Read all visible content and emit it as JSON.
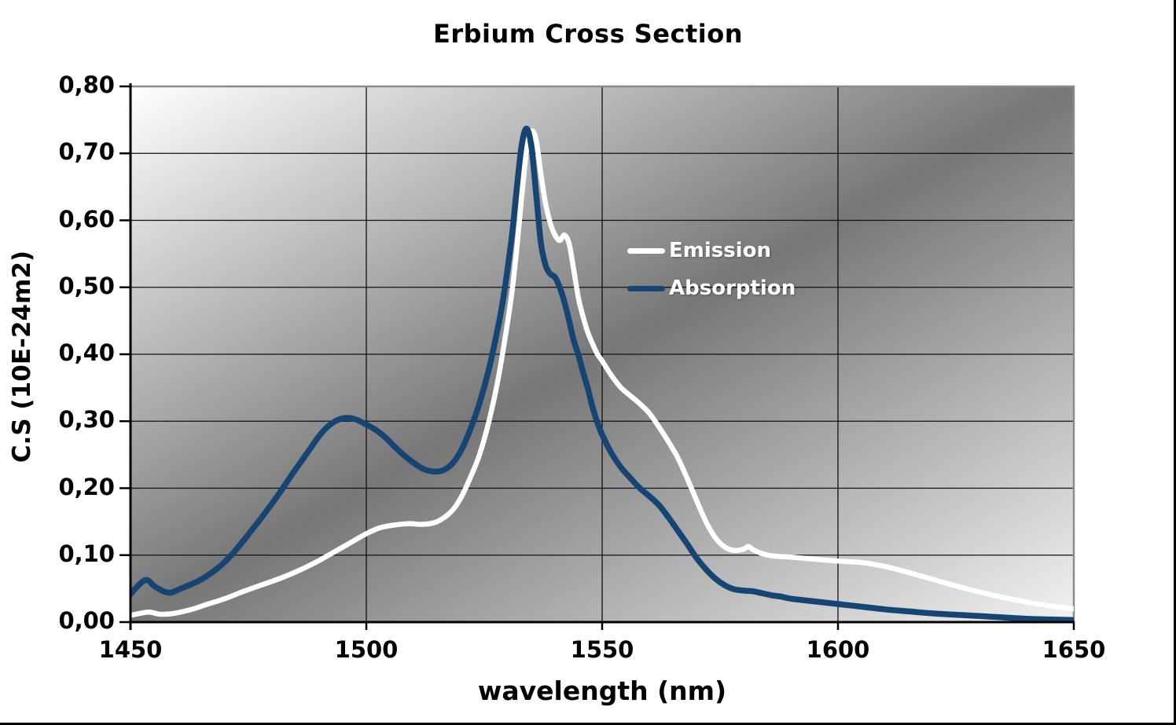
{
  "title": "Erbium Cross Section",
  "colors": {
    "emission_line": "#ffffff",
    "absorption_line": "#164573",
    "gridline": "#111111",
    "axis": "#000000",
    "plot_border": "#8c8c8c",
    "gradient_light": "#ffffff",
    "gradient_dark": "#777777",
    "gradient_end": "#f2f2f2",
    "text": "#000000",
    "legend_text": "#ffffff"
  },
  "legend": {
    "entries": [
      "Emission",
      "Absorption"
    ]
  },
  "chart_data": {
    "type": "line",
    "title": "Erbium Cross Section",
    "xlabel": "wavelength (nm)",
    "ylabel": "C.S (10E-24m2)",
    "xlim": [
      1450,
      1650
    ],
    "ylim": [
      0,
      0.8
    ],
    "grid": true,
    "legend_position": "center-right",
    "x_ticks": [
      {
        "v": 1450,
        "label": "1450"
      },
      {
        "v": 1500,
        "label": "1500"
      },
      {
        "v": 1550,
        "label": "1550"
      },
      {
        "v": 1600,
        "label": "1600"
      },
      {
        "v": 1650,
        "label": "1650"
      }
    ],
    "y_ticks": [
      {
        "v": 0.0,
        "label": "0,00"
      },
      {
        "v": 0.1,
        "label": "0,10"
      },
      {
        "v": 0.2,
        "label": "0,20"
      },
      {
        "v": 0.3,
        "label": "0,30"
      },
      {
        "v": 0.4,
        "label": "0,40"
      },
      {
        "v": 0.5,
        "label": "0,50"
      },
      {
        "v": 0.6,
        "label": "0,60"
      },
      {
        "v": 0.7,
        "label": "0,70"
      },
      {
        "v": 0.8,
        "label": "0,80"
      }
    ],
    "series": [
      {
        "name": "Emission",
        "color": "#ffffff",
        "stroke_width": 6.5,
        "points": [
          [
            1450,
            0.01
          ],
          [
            1452,
            0.013
          ],
          [
            1454,
            0.015
          ],
          [
            1456,
            0.012
          ],
          [
            1458,
            0.012
          ],
          [
            1460,
            0.014
          ],
          [
            1463,
            0.019
          ],
          [
            1466,
            0.026
          ],
          [
            1470,
            0.035
          ],
          [
            1474,
            0.046
          ],
          [
            1478,
            0.056
          ],
          [
            1482,
            0.066
          ],
          [
            1486,
            0.078
          ],
          [
            1490,
            0.092
          ],
          [
            1494,
            0.108
          ],
          [
            1497,
            0.12
          ],
          [
            1500,
            0.132
          ],
          [
            1503,
            0.141
          ],
          [
            1506,
            0.145
          ],
          [
            1509,
            0.147
          ],
          [
            1512,
            0.146
          ],
          [
            1515,
            0.15
          ],
          [
            1518,
            0.165
          ],
          [
            1520,
            0.185
          ],
          [
            1522,
            0.215
          ],
          [
            1524,
            0.25
          ],
          [
            1526,
            0.3
          ],
          [
            1528,
            0.365
          ],
          [
            1530,
            0.45
          ],
          [
            1531,
            0.5
          ],
          [
            1532,
            0.565
          ],
          [
            1533,
            0.64
          ],
          [
            1534,
            0.705
          ],
          [
            1535,
            0.733
          ],
          [
            1536,
            0.72
          ],
          [
            1537,
            0.67
          ],
          [
            1538,
            0.625
          ],
          [
            1539,
            0.596
          ],
          [
            1540,
            0.578
          ],
          [
            1541,
            0.57
          ],
          [
            1542,
            0.578
          ],
          [
            1543,
            0.565
          ],
          [
            1544,
            0.525
          ],
          [
            1545,
            0.483
          ],
          [
            1546,
            0.455
          ],
          [
            1547,
            0.432
          ],
          [
            1548,
            0.415
          ],
          [
            1549,
            0.4
          ],
          [
            1550,
            0.39
          ],
          [
            1552,
            0.368
          ],
          [
            1554,
            0.35
          ],
          [
            1556,
            0.338
          ],
          [
            1558,
            0.326
          ],
          [
            1560,
            0.312
          ],
          [
            1562,
            0.292
          ],
          [
            1564,
            0.27
          ],
          [
            1566,
            0.246
          ],
          [
            1568,
            0.215
          ],
          [
            1570,
            0.182
          ],
          [
            1572,
            0.15
          ],
          [
            1574,
            0.126
          ],
          [
            1576,
            0.112
          ],
          [
            1578,
            0.107
          ],
          [
            1580,
            0.109
          ],
          [
            1581,
            0.113
          ],
          [
            1582,
            0.108
          ],
          [
            1584,
            0.102
          ],
          [
            1586,
            0.099
          ],
          [
            1590,
            0.097
          ],
          [
            1595,
            0.094
          ],
          [
            1600,
            0.091
          ],
          [
            1605,
            0.089
          ],
          [
            1610,
            0.083
          ],
          [
            1615,
            0.074
          ],
          [
            1620,
            0.064
          ],
          [
            1625,
            0.054
          ],
          [
            1630,
            0.045
          ],
          [
            1635,
            0.037
          ],
          [
            1640,
            0.03
          ],
          [
            1645,
            0.024
          ],
          [
            1650,
            0.02
          ]
        ]
      },
      {
        "name": "Absorption",
        "color": "#164573",
        "stroke_width": 7.5,
        "points": [
          [
            1450,
            0.042
          ],
          [
            1452,
            0.057
          ],
          [
            1453.5,
            0.063
          ],
          [
            1455,
            0.054
          ],
          [
            1457,
            0.046
          ],
          [
            1458.5,
            0.044
          ],
          [
            1460,
            0.048
          ],
          [
            1462,
            0.054
          ],
          [
            1464,
            0.06
          ],
          [
            1466,
            0.068
          ],
          [
            1468,
            0.078
          ],
          [
            1470,
            0.09
          ],
          [
            1472,
            0.105
          ],
          [
            1474,
            0.122
          ],
          [
            1476,
            0.14
          ],
          [
            1478,
            0.158
          ],
          [
            1480,
            0.177
          ],
          [
            1482,
            0.197
          ],
          [
            1484,
            0.218
          ],
          [
            1486,
            0.238
          ],
          [
            1488,
            0.258
          ],
          [
            1490,
            0.278
          ],
          [
            1492,
            0.293
          ],
          [
            1494,
            0.302
          ],
          [
            1496,
            0.305
          ],
          [
            1498,
            0.302
          ],
          [
            1500,
            0.295
          ],
          [
            1502,
            0.287
          ],
          [
            1504,
            0.276
          ],
          [
            1506,
            0.262
          ],
          [
            1508,
            0.249
          ],
          [
            1510,
            0.238
          ],
          [
            1512,
            0.229
          ],
          [
            1514,
            0.225
          ],
          [
            1516,
            0.226
          ],
          [
            1518,
            0.235
          ],
          [
            1520,
            0.255
          ],
          [
            1522,
            0.287
          ],
          [
            1524,
            0.327
          ],
          [
            1526,
            0.378
          ],
          [
            1528,
            0.443
          ],
          [
            1529,
            0.482
          ],
          [
            1530,
            0.53
          ],
          [
            1531,
            0.585
          ],
          [
            1532,
            0.655
          ],
          [
            1533,
            0.715
          ],
          [
            1534,
            0.737
          ],
          [
            1535,
            0.71
          ],
          [
            1536,
            0.64
          ],
          [
            1537,
            0.567
          ],
          [
            1538,
            0.533
          ],
          [
            1539,
            0.52
          ],
          [
            1540,
            0.515
          ],
          [
            1541,
            0.5
          ],
          [
            1542,
            0.478
          ],
          [
            1543,
            0.45
          ],
          [
            1544,
            0.42
          ],
          [
            1545,
            0.398
          ],
          [
            1546,
            0.372
          ],
          [
            1547,
            0.348
          ],
          [
            1548,
            0.32
          ],
          [
            1549,
            0.298
          ],
          [
            1550,
            0.28
          ],
          [
            1552,
            0.252
          ],
          [
            1554,
            0.231
          ],
          [
            1556,
            0.215
          ],
          [
            1558,
            0.2
          ],
          [
            1560,
            0.188
          ],
          [
            1562,
            0.175
          ],
          [
            1564,
            0.157
          ],
          [
            1566,
            0.137
          ],
          [
            1568,
            0.117
          ],
          [
            1570,
            0.096
          ],
          [
            1572,
            0.079
          ],
          [
            1574,
            0.065
          ],
          [
            1576,
            0.055
          ],
          [
            1578,
            0.049
          ],
          [
            1580,
            0.047
          ],
          [
            1582,
            0.046
          ],
          [
            1584,
            0.043
          ],
          [
            1586,
            0.04
          ],
          [
            1588,
            0.038
          ],
          [
            1590,
            0.035
          ],
          [
            1595,
            0.031
          ],
          [
            1600,
            0.027
          ],
          [
            1605,
            0.023
          ],
          [
            1610,
            0.019
          ],
          [
            1615,
            0.016
          ],
          [
            1620,
            0.013
          ],
          [
            1625,
            0.011
          ],
          [
            1630,
            0.009
          ],
          [
            1635,
            0.007
          ],
          [
            1640,
            0.005
          ],
          [
            1645,
            0.004
          ],
          [
            1650,
            0.003
          ]
        ]
      }
    ]
  }
}
